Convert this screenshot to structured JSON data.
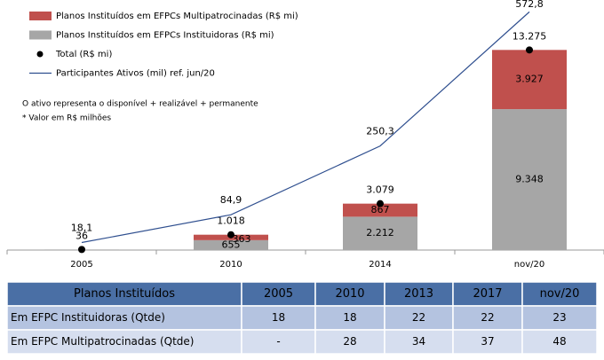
{
  "chart_data": {
    "type": "bar",
    "categories": [
      "2005",
      "2010",
      "2014",
      "nov/20"
    ],
    "series": [
      {
        "name": "Planos Instituídos em EFPCs Multipatrocinadas (R$ mi)",
        "color": "#c0504d",
        "values": [
          null,
          363,
          867,
          3927
        ],
        "value_labels": [
          null,
          "363",
          "867",
          "3.927"
        ]
      },
      {
        "name": "Planos Instituídos em EFPCs Instituidoras (R$ mi)",
        "color": "#a6a6a6",
        "values": [
          36,
          655,
          2212,
          9348
        ],
        "value_labels": [
          null,
          "655",
          "2.212",
          "9.348"
        ]
      },
      {
        "name": "Total (R$ mi)",
        "color": "#000000",
        "values": [
          36,
          1018,
          3079,
          13275
        ],
        "value_labels": [
          "36",
          "1.018",
          "3.079",
          "13.275"
        ]
      },
      {
        "name": "Participantes Ativos (mil) ref. jun/20",
        "color": "#2f4f8f",
        "axis": "y2",
        "values": [
          18.1,
          84.9,
          250.3,
          572.8
        ],
        "value_labels": [
          "18,1",
          "84,9",
          "250,3",
          "572,8"
        ]
      }
    ],
    "ylim": [
      0,
      16000
    ],
    "y2lim": [
      0,
      580
    ],
    "annotations": [
      "O ativo representa o disponível + realizável + permanente",
      "* Valor em R$ milhões"
    ]
  },
  "table": {
    "header": [
      "Planos Instituídos",
      "2005",
      "2010",
      "2013",
      "2017",
      "nov/20"
    ],
    "rows": [
      [
        "Em EFPC Instituidoras (Qtde)",
        18,
        18,
        22,
        22,
        23
      ],
      [
        "Em EFPC Multipatrocinadas (Qtde)",
        "-",
        28,
        34,
        37,
        48
      ]
    ]
  }
}
